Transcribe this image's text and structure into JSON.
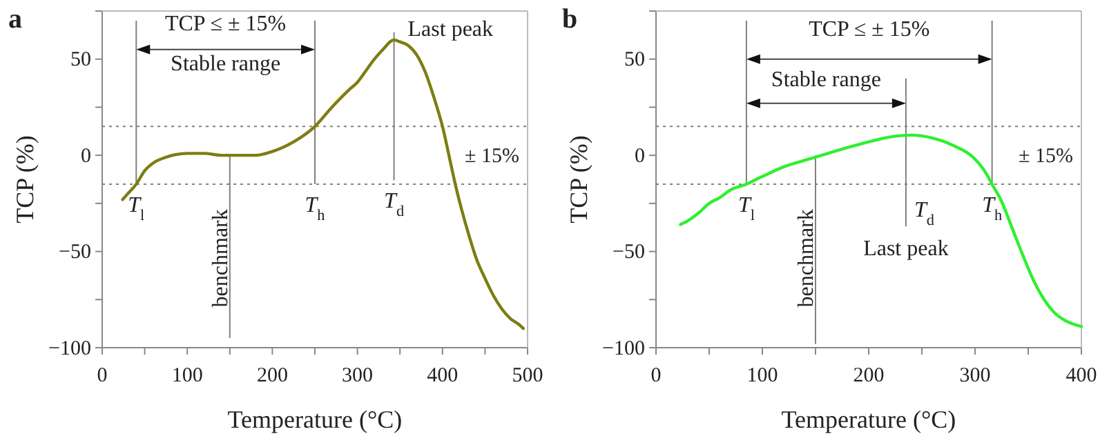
{
  "chart_data": [
    {
      "type": "line",
      "title": "a",
      "xlabel": "Temperature (°C)",
      "ylabel": "TCP (%)",
      "xlim": [
        0,
        500
      ],
      "ylim": [
        -100,
        75
      ],
      "xticks": [
        0,
        {
          "value": 50,
          "label": null
        },
        100,
        {
          "value": 150,
          "label": null
        },
        200,
        {
          "value": 250,
          "label": null
        },
        300,
        {
          "value": 350,
          "label": null
        },
        400,
        {
          "value": 450,
          "label": null
        },
        500
      ],
      "yticks": [
        -100,
        {
          "value": -75,
          "label": null
        },
        -50,
        {
          "value": -25,
          "label": null
        },
        0,
        {
          "value": 25,
          "label": null
        },
        50
      ],
      "grid": false,
      "line_style": "solid",
      "series": [
        {
          "color": "#7d7d12",
          "x": [
            24,
            30,
            40,
            50,
            60,
            75,
            100,
            120,
            140,
            150,
            180,
            200,
            225,
            250,
            270,
            290,
            300,
            310,
            320,
            330,
            343,
            350,
            360,
            370,
            380,
            390,
            400,
            410,
            415,
            420,
            430,
            440,
            450,
            460,
            470,
            480,
            490,
            495
          ],
          "values": [
            -23,
            -20,
            -15,
            -8,
            -4,
            -1,
            1,
            1,
            0,
            0,
            0,
            2,
            7,
            15,
            25,
            34,
            38,
            44,
            50,
            55,
            60,
            59,
            57,
            52,
            43,
            30,
            15,
            -5,
            -15,
            -24,
            -40,
            -54,
            -64,
            -73,
            -80,
            -85,
            -88,
            -90
          ]
        }
      ],
      "ref_lines": [
        {
          "axis": "y",
          "value": 15,
          "label": "± 15%",
          "line_style": "dotted",
          "color": "#808080"
        },
        {
          "axis": "y",
          "value": -15,
          "line_style": "dotted",
          "color": "#808080"
        },
        {
          "axis": "x",
          "value": 40,
          "label": "T$_{l}$",
          "color": "#808080"
        },
        {
          "axis": "x",
          "value": 150,
          "label": "benchmark",
          "color": "#808080"
        },
        {
          "axis": "x",
          "value": 250,
          "label": "T$_{h}$",
          "color": "#808080"
        },
        {
          "axis": "x",
          "value": 343,
          "label": "T$_{d}$",
          "color": "#808080"
        }
      ],
      "annotations": [
        "TCP ≤ ± 15%",
        "Stable range",
        "Last peak"
      ]
    },
    {
      "type": "line",
      "title": "b",
      "xlabel": "Temperature (°C)",
      "ylabel": "TCP (%)",
      "xlim": [
        0,
        400
      ],
      "ylim": [
        -100,
        75
      ],
      "xticks": [
        0,
        {
          "value": 50,
          "label": null
        },
        100,
        {
          "value": 150,
          "label": null
        },
        200,
        {
          "value": 250,
          "label": null
        },
        300,
        {
          "value": 350,
          "label": null
        },
        400
      ],
      "yticks": [
        -100,
        {
          "value": -75,
          "label": null
        },
        -50,
        {
          "value": -25,
          "label": null
        },
        0,
        {
          "value": 25,
          "label": null
        },
        50
      ],
      "grid": false,
      "line_style": "solid",
      "series": [
        {
          "color": "#2ef02e",
          "x": [
            23,
            30,
            40,
            50,
            60,
            70,
            85,
            100,
            120,
            150,
            180,
            200,
            220,
            240,
            260,
            280,
            300,
            310,
            316,
            325,
            335,
            345,
            355,
            365,
            375,
            385,
            400
          ],
          "values": [
            -36,
            -34,
            -30,
            -25,
            -22,
            -18,
            -15,
            -11,
            -6,
            -1,
            4,
            7,
            9.5,
            10.5,
            9,
            5,
            -2,
            -9,
            -15,
            -24,
            -38,
            -52,
            -65,
            -75,
            -82,
            -86,
            -89
          ]
        }
      ],
      "ref_lines": [
        {
          "axis": "y",
          "value": 15,
          "label": "± 15%",
          "line_style": "dotted",
          "color": "#808080"
        },
        {
          "axis": "y",
          "value": -15,
          "line_style": "dotted",
          "color": "#808080"
        },
        {
          "axis": "x",
          "value": 85,
          "label": "T$_{l}$",
          "color": "#808080"
        },
        {
          "axis": "x",
          "value": 150,
          "label": "benchmark",
          "color": "#808080"
        },
        {
          "axis": "x",
          "value": 235,
          "label": "T$_{d}$",
          "color": "#808080"
        },
        {
          "axis": "x",
          "value": 316,
          "label": "T$_{h}$",
          "color": "#808080"
        }
      ],
      "annotations": [
        "TCP ≤ ± 15%",
        "Stable range",
        "Last peak"
      ]
    }
  ]
}
